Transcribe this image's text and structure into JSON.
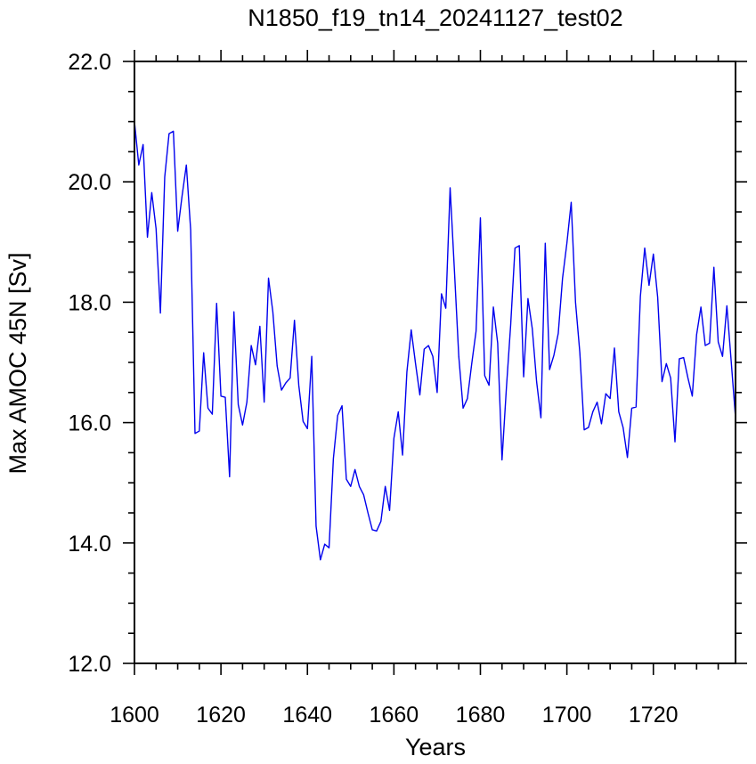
{
  "chart_data": {
    "type": "line",
    "title": "N1850_f19_tn14_20241127_test02",
    "xlabel": "Years",
    "ylabel": "Max AMOC 45N [Sv]",
    "xlim": [
      1600,
      1739
    ],
    "ylim": [
      12.0,
      22.0
    ],
    "xticks": [
      1600,
      1620,
      1640,
      1660,
      1680,
      1700,
      1720
    ],
    "xtick_labels": [
      "1600",
      "1620",
      "1640",
      "1660",
      "1680",
      "1700",
      "1720"
    ],
    "yticks": [
      12.0,
      14.0,
      16.0,
      18.0,
      20.0,
      22.0
    ],
    "ytick_labels": [
      "12.0",
      "14.0",
      "16.0",
      "18.0",
      "20.0",
      "22.0"
    ],
    "grid": false,
    "series": [
      {
        "color": "#0000ee",
        "x": [
          1600,
          1601,
          1602,
          1603,
          1604,
          1605,
          1606,
          1607,
          1608,
          1609,
          1610,
          1611,
          1612,
          1613,
          1614,
          1615,
          1616,
          1617,
          1618,
          1619,
          1620,
          1621,
          1622,
          1623,
          1624,
          1625,
          1626,
          1627,
          1628,
          1629,
          1630,
          1631,
          1632,
          1633,
          1634,
          1635,
          1636,
          1637,
          1638,
          1639,
          1640,
          1641,
          1642,
          1643,
          1644,
          1645,
          1646,
          1647,
          1648,
          1649,
          1650,
          1651,
          1652,
          1653,
          1654,
          1655,
          1656,
          1657,
          1658,
          1659,
          1660,
          1661,
          1662,
          1663,
          1664,
          1665,
          1666,
          1667,
          1668,
          1669,
          1670,
          1671,
          1672,
          1673,
          1674,
          1675,
          1676,
          1677,
          1678,
          1679,
          1680,
          1681,
          1682,
          1683,
          1684,
          1685,
          1686,
          1687,
          1688,
          1689,
          1690,
          1691,
          1692,
          1693,
          1694,
          1695,
          1696,
          1697,
          1698,
          1699,
          1700,
          1701,
          1702,
          1703,
          1704,
          1705,
          1706,
          1707,
          1708,
          1709,
          1710,
          1711,
          1712,
          1713,
          1714,
          1715,
          1716,
          1717,
          1718,
          1719,
          1720,
          1721,
          1722,
          1723,
          1724,
          1725,
          1726,
          1727,
          1728,
          1729,
          1730,
          1731,
          1732,
          1733,
          1734,
          1735,
          1736,
          1737,
          1738,
          1739
        ],
        "y": [
          21.0,
          20.28,
          20.62,
          19.08,
          19.82,
          19.22,
          17.82,
          20.08,
          20.8,
          20.84,
          19.18,
          19.76,
          20.28,
          19.2,
          15.82,
          15.86,
          17.16,
          16.24,
          16.14,
          17.98,
          16.44,
          16.42,
          15.1,
          17.84,
          16.3,
          15.96,
          16.34,
          17.28,
          16.96,
          17.6,
          16.34,
          18.4,
          17.84,
          16.94,
          16.54,
          16.66,
          16.74,
          17.7,
          16.62,
          16.02,
          15.9,
          17.1,
          14.28,
          13.72,
          13.98,
          13.92,
          15.4,
          16.12,
          16.28,
          15.06,
          14.94,
          15.22,
          14.94,
          14.8,
          14.5,
          14.22,
          14.2,
          14.36,
          14.94,
          14.54,
          15.74,
          16.18,
          15.46,
          16.84,
          17.54,
          16.98,
          16.46,
          17.22,
          17.28,
          17.1,
          16.5,
          18.14,
          17.9,
          19.9,
          18.52,
          17.1,
          16.24,
          16.4,
          16.98,
          17.52,
          19.4,
          16.78,
          16.62,
          17.92,
          17.32,
          15.38,
          16.56,
          17.62,
          18.9,
          18.94,
          16.76,
          18.06,
          17.56,
          16.68,
          16.08,
          18.98,
          16.88,
          17.12,
          17.48,
          18.4,
          18.98,
          19.66,
          18.0,
          17.16,
          15.88,
          15.92,
          16.18,
          16.34,
          15.98,
          16.48,
          16.4,
          17.24,
          16.18,
          15.92,
          15.42,
          16.24,
          16.26,
          18.1,
          18.9,
          18.28,
          18.8,
          18.08,
          16.68,
          16.98,
          16.74,
          15.68,
          17.06,
          17.08,
          16.74,
          16.44,
          17.46,
          17.92,
          17.28,
          17.32,
          18.58,
          17.34,
          17.1,
          17.94,
          17.02,
          16.08
        ]
      }
    ]
  }
}
